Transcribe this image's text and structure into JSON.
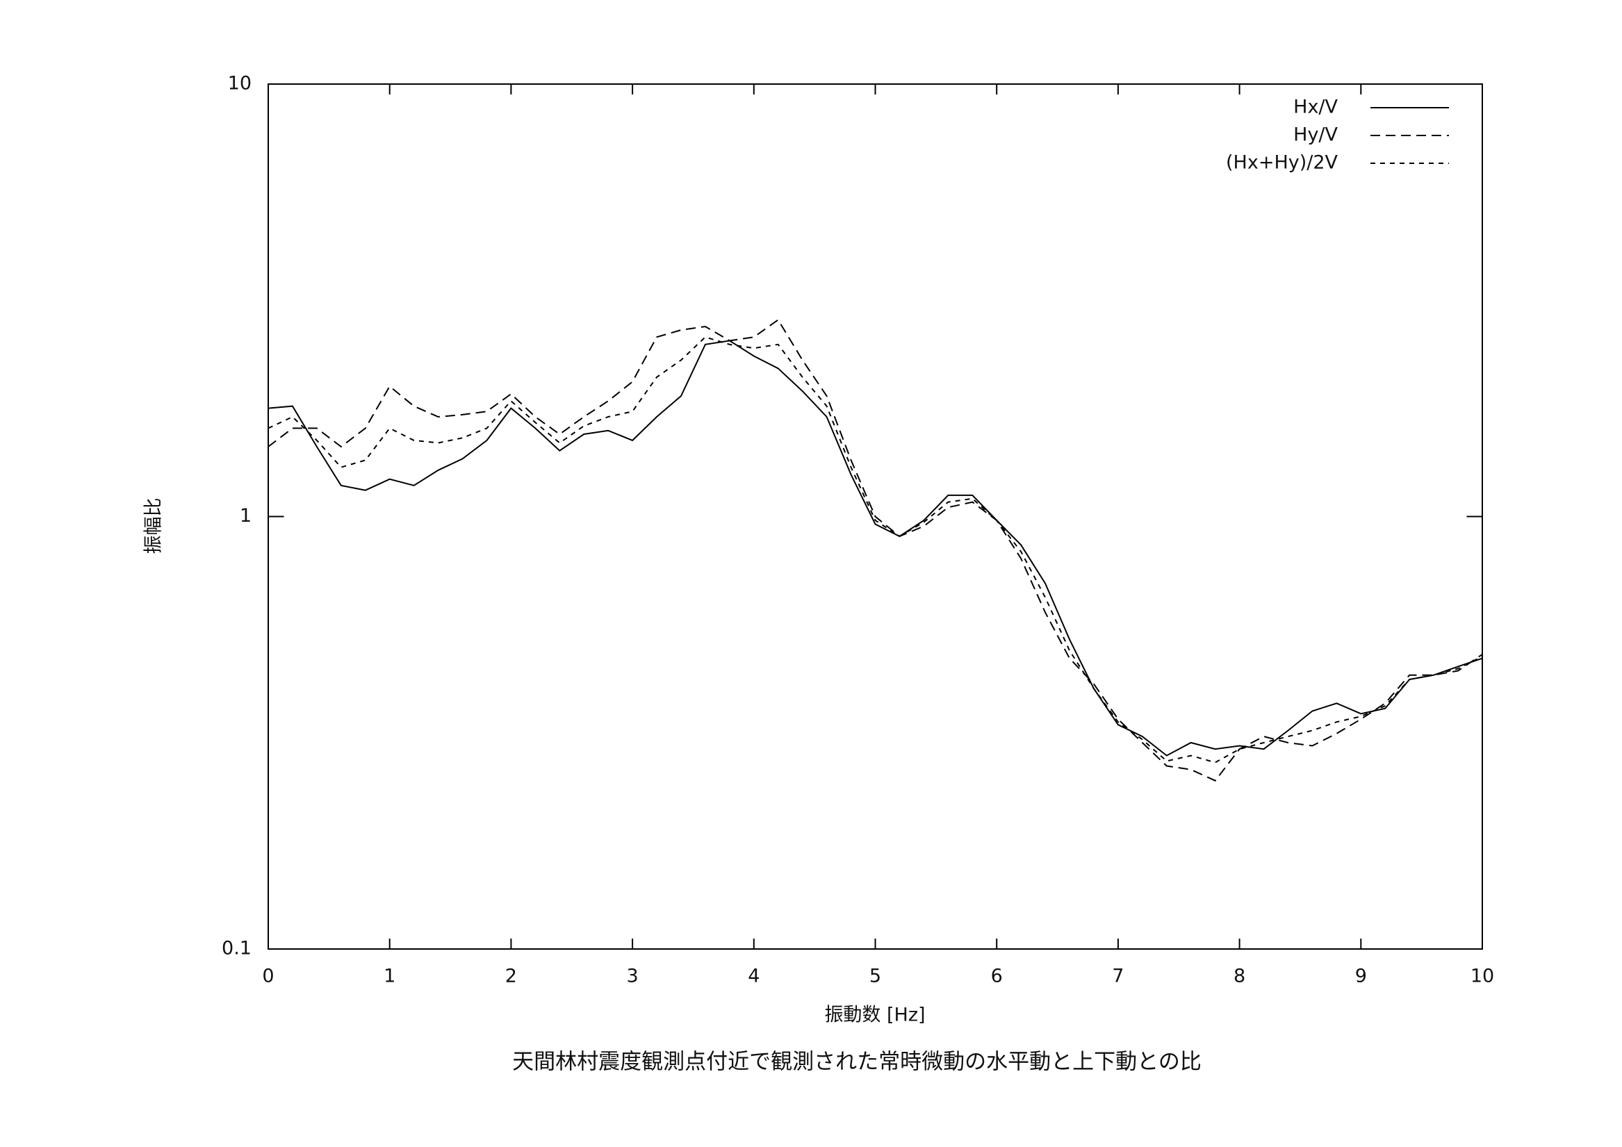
{
  "chart_data": {
    "type": "line",
    "caption": "天間林村震度観測点付近で観測された常時微動の水平動と上下動との比",
    "x_label": "振動数 [Hz]",
    "y_label": "振幅比",
    "log_y": true,
    "legend": "top-right",
    "xlim": [
      0,
      10
    ],
    "xticks": [
      0,
      1,
      2,
      3,
      4,
      5,
      6,
      7,
      8,
      9,
      10
    ],
    "ylim": [
      0.1,
      10
    ],
    "yticks": [
      0.1,
      1,
      10
    ],
    "x": [
      0,
      0.2,
      0.4,
      0.6,
      0.8,
      1.0,
      1.2,
      1.4,
      1.6,
      1.8,
      2.0,
      2.2,
      2.4,
      2.6,
      2.8,
      3.0,
      3.2,
      3.4,
      3.6,
      3.8,
      4.0,
      4.2,
      4.4,
      4.6,
      4.8,
      5.0,
      5.2,
      5.4,
      5.6,
      5.8,
      6.0,
      6.2,
      6.4,
      6.6,
      6.8,
      7.0,
      7.2,
      7.4,
      7.6,
      7.8,
      8.0,
      8.2,
      8.4,
      8.6,
      8.8,
      9.0,
      9.2,
      9.4,
      9.6,
      9.8,
      10.0
    ],
    "series": [
      {
        "name": "Hx/V",
        "color": "#000000",
        "style": "solid",
        "values": [
          1.78,
          1.8,
          1.45,
          1.18,
          1.15,
          1.22,
          1.18,
          1.28,
          1.36,
          1.5,
          1.78,
          1.6,
          1.42,
          1.55,
          1.58,
          1.5,
          1.7,
          1.9,
          2.5,
          2.55,
          2.35,
          2.2,
          1.95,
          1.7,
          1.25,
          0.96,
          0.9,
          0.98,
          1.12,
          1.12,
          0.98,
          0.86,
          0.7,
          0.52,
          0.4,
          0.33,
          0.31,
          0.28,
          0.3,
          0.29,
          0.295,
          0.29,
          0.32,
          0.355,
          0.37,
          0.35,
          0.36,
          0.42,
          0.43,
          0.45,
          0.47
        ]
      },
      {
        "name": "Hy/V",
        "color": "#000000",
        "style": "dashed",
        "values": [
          1.45,
          1.6,
          1.6,
          1.45,
          1.6,
          2.0,
          1.8,
          1.7,
          1.72,
          1.75,
          1.92,
          1.7,
          1.55,
          1.7,
          1.85,
          2.05,
          2.6,
          2.7,
          2.75,
          2.55,
          2.6,
          2.85,
          2.3,
          1.9,
          1.35,
          1.0,
          0.9,
          0.95,
          1.05,
          1.08,
          0.98,
          0.8,
          0.6,
          0.47,
          0.41,
          0.34,
          0.3,
          0.265,
          0.26,
          0.245,
          0.29,
          0.31,
          0.3,
          0.295,
          0.315,
          0.34,
          0.37,
          0.43,
          0.43,
          0.44,
          0.48
        ]
      },
      {
        "name": "(Hx+Hy)/2V",
        "color": "#000000",
        "style": "dotted",
        "values": [
          1.6,
          1.7,
          1.5,
          1.3,
          1.35,
          1.6,
          1.5,
          1.48,
          1.52,
          1.6,
          1.85,
          1.65,
          1.48,
          1.62,
          1.7,
          1.75,
          2.1,
          2.3,
          2.6,
          2.5,
          2.45,
          2.5,
          2.1,
          1.8,
          1.3,
          0.98,
          0.9,
          0.97,
          1.08,
          1.1,
          0.98,
          0.83,
          0.65,
          0.49,
          0.4,
          0.335,
          0.305,
          0.272,
          0.28,
          0.27,
          0.29,
          0.3,
          0.31,
          0.32,
          0.335,
          0.345,
          0.365,
          0.42,
          0.43,
          0.445,
          0.475
        ]
      }
    ]
  }
}
